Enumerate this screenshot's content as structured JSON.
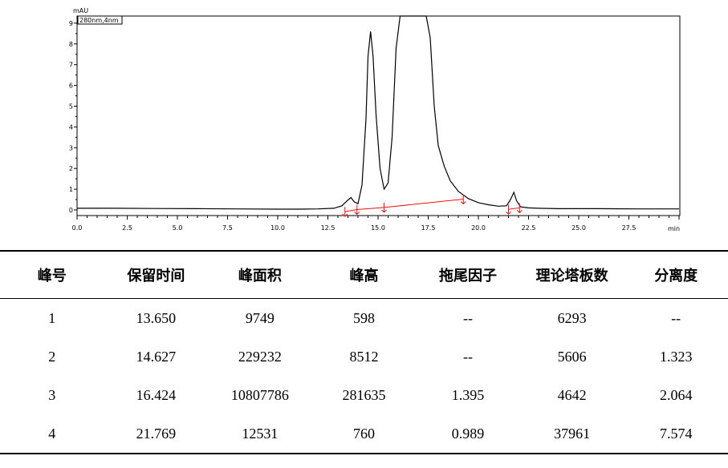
{
  "chart_data": {
    "type": "line",
    "y_unit": "mAU",
    "x_unit": "min",
    "channel_label": "280nm,4nm",
    "xlim": [
      0,
      30
    ],
    "ylim": [
      -0.5,
      9.2
    ],
    "x_ticks": [
      "0.0",
      "2.5",
      "5.0",
      "7.5",
      "10.0",
      "12.5",
      "15.0",
      "17.5",
      "20.0",
      "22.5",
      "25.0",
      "27.5"
    ],
    "x_tick_values": [
      0,
      2.5,
      5,
      7.5,
      10,
      12.5,
      15,
      17.5,
      20,
      22.5,
      25,
      27.5
    ],
    "y_ticks": [
      "0",
      "1",
      "2",
      "3",
      "4",
      "5",
      "6",
      "7",
      "8",
      "9"
    ],
    "y_tick_values": [
      0,
      1,
      2,
      3,
      4,
      5,
      6,
      7,
      8,
      9
    ],
    "series": [
      {
        "color": "#000000",
        "x": [
          0,
          2,
          4,
          6,
          8,
          10,
          11,
          12,
          12.8,
          13.2,
          13.5,
          13.65,
          13.8,
          14.0,
          14.2,
          14.4,
          14.5,
          14.627,
          14.75,
          14.9,
          15.1,
          15.3,
          15.5,
          15.7,
          15.9,
          16.1,
          16.3,
          16.424,
          16.6,
          16.8,
          17.0,
          17.2,
          17.4,
          17.6,
          17.8,
          18.0,
          18.3,
          18.6,
          19.0,
          19.5,
          20.0,
          20.5,
          21.0,
          21.4,
          21.6,
          21.769,
          21.9,
          22.1,
          22.5,
          23,
          24,
          26,
          28,
          30
        ],
        "y": [
          0.08,
          0.08,
          0.07,
          0.06,
          0.05,
          0.04,
          0.04,
          0.05,
          0.08,
          0.2,
          0.48,
          0.6,
          0.4,
          0.3,
          1.2,
          4.4,
          7.4,
          8.6,
          7.4,
          4.6,
          2.0,
          1.0,
          1.3,
          3.5,
          7.8,
          9.5,
          9.5,
          9.5,
          9.5,
          9.5,
          9.5,
          9.5,
          9.5,
          8.3,
          5.0,
          3.1,
          2.1,
          1.4,
          0.9,
          0.55,
          0.35,
          0.25,
          0.18,
          0.2,
          0.5,
          0.85,
          0.45,
          0.15,
          0.1,
          0.08,
          0.06,
          0.06,
          0.05,
          0.05
        ]
      }
    ],
    "integration_baseline": {
      "color": "#ee1111",
      "x": [
        13.35,
        13.95,
        15.3,
        19.25
      ],
      "y": [
        -0.08,
        0.02,
        0.12,
        0.52
      ]
    },
    "baseline_2": {
      "color": "#ee1111",
      "x": [
        21.5,
        22.05
      ],
      "y": [
        0.03,
        0.1
      ]
    },
    "peak_markers": {
      "color": "#ee1111",
      "x": [
        13.35,
        13.95,
        15.3,
        19.25,
        21.5,
        22.05
      ],
      "y": [
        -0.08,
        0.02,
        0.12,
        0.52,
        0.03,
        0.1
      ]
    }
  },
  "table": {
    "headers": [
      "峰号",
      "保留时间",
      "峰面积",
      "峰高",
      "拖尾因子",
      "理论塔板数",
      "分离度"
    ],
    "rows": [
      [
        "1",
        "13.650",
        "9749",
        "598",
        "--",
        "6293",
        "--"
      ],
      [
        "2",
        "14.627",
        "229232",
        "8512",
        "--",
        "5606",
        "1.323"
      ],
      [
        "3",
        "16.424",
        "10807786",
        "281635",
        "1.395",
        "4642",
        "2.064"
      ],
      [
        "4",
        "21.769",
        "12531",
        "760",
        "0.989",
        "37961",
        "7.574"
      ]
    ]
  }
}
